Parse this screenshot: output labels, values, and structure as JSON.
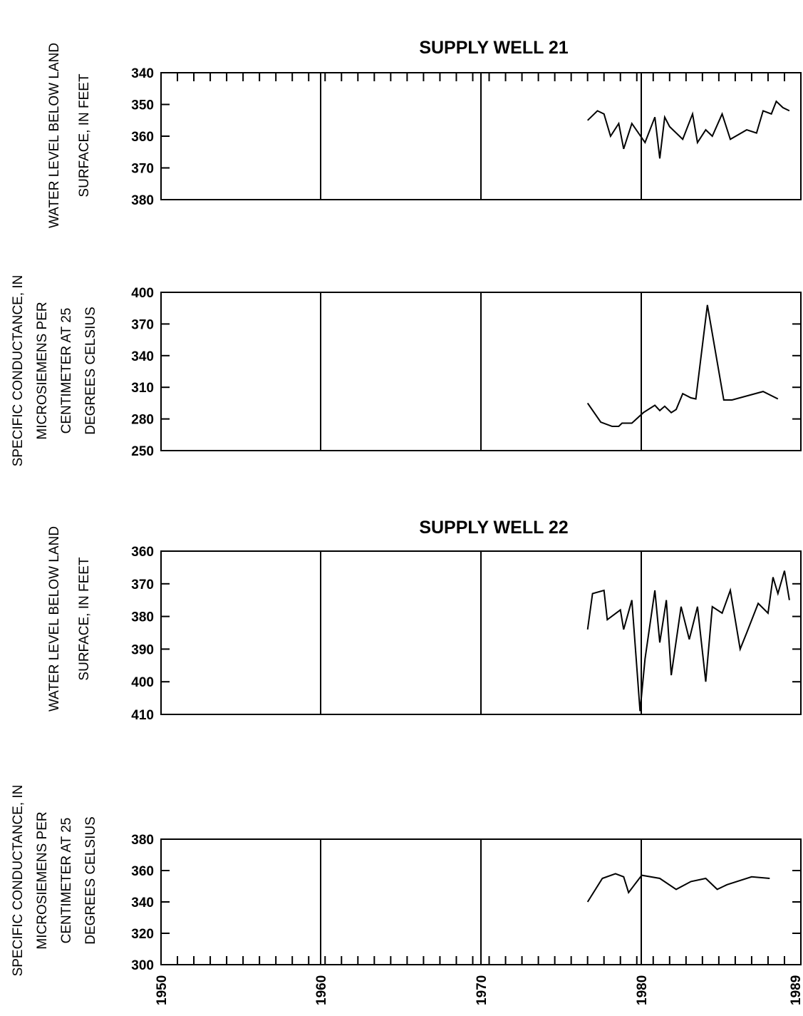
{
  "chart_data": [
    {
      "type": "line",
      "title": "SUPPLY WELL 21",
      "ylabel_lines": [
        "WATER LEVEL BELOW LAND",
        "SURFACE, IN FEET"
      ],
      "ylim": [
        340,
        380
      ],
      "yticks": [
        "340",
        "350",
        "360",
        "370",
        "380"
      ],
      "y_inverted": true,
      "xlim": [
        1950,
        1989
      ],
      "series": [
        {
          "x": [
            1976.0,
            1976.6,
            1977.0,
            1977.4,
            1977.9,
            1978.2,
            1978.7,
            1979.5,
            1980.1,
            1980.4,
            1980.7,
            1981.0,
            1981.8,
            1982.4,
            1982.7,
            1983.2,
            1983.6,
            1984.2,
            1984.7,
            1985.7,
            1986.3,
            1986.7,
            1987.2,
            1987.5,
            1987.9,
            1988.3
          ],
          "y": [
            355,
            352,
            353,
            360,
            356,
            364,
            356,
            362,
            354,
            367,
            354,
            357,
            361,
            353,
            362,
            358,
            360,
            353,
            361,
            358,
            359,
            352,
            353,
            349,
            351,
            352
          ]
        }
      ]
    },
    {
      "type": "line",
      "title": "",
      "ylabel_lines": [
        "SPECIFIC CONDUCTANCE, IN",
        "MICROSIEMENS PER",
        "CENTIMETER AT 25",
        "DEGREES CELSIUS"
      ],
      "ylim": [
        250,
        400
      ],
      "yticks": [
        "250",
        "280",
        "310",
        "340",
        "370",
        "400"
      ],
      "xlim": [
        1950,
        1989
      ],
      "series": [
        {
          "x": [
            1976.0,
            1976.8,
            1977.5,
            1977.9,
            1978.1,
            1978.7,
            1979.4,
            1980.1,
            1980.4,
            1980.7,
            1981.1,
            1981.4,
            1981.8,
            1982.3,
            1982.6,
            1983.3,
            1984.3,
            1984.8,
            1986.7,
            1987.6
          ],
          "y": [
            295,
            277,
            273,
            273,
            276,
            276,
            286,
            293,
            288,
            292,
            286,
            289,
            304,
            300,
            299,
            388,
            298,
            298,
            306,
            299
          ]
        }
      ]
    },
    {
      "type": "line",
      "title": "SUPPLY WELL 22",
      "ylabel_lines": [
        "WATER LEVEL BELOW LAND",
        "SURFACE, IN FEET"
      ],
      "ylim": [
        360,
        410
      ],
      "yticks": [
        "360",
        "370",
        "380",
        "390",
        "400",
        "410"
      ],
      "y_inverted": true,
      "xlim": [
        1950,
        1989
      ],
      "series": [
        {
          "x": [
            1976.0,
            1976.3,
            1977.0,
            1977.2,
            1978.0,
            1978.2,
            1978.7,
            1979.2,
            1979.5,
            1980.1,
            1980.4,
            1980.8,
            1981.1,
            1981.7,
            1982.2,
            1982.7,
            1983.2,
            1983.6,
            1984.2,
            1984.7,
            1985.3,
            1985.7,
            1986.4,
            1987.0,
            1987.3,
            1987.6,
            1988.0,
            1988.3
          ],
          "y": [
            384,
            373,
            372,
            381,
            378,
            384,
            375,
            409,
            393,
            372,
            388,
            375,
            398,
            377,
            387,
            377,
            400,
            377,
            379,
            372,
            390,
            385,
            376,
            379,
            368,
            373,
            366,
            375
          ]
        }
      ]
    },
    {
      "type": "line",
      "title": "",
      "ylabel_lines": [
        "SPECIFIC CONDUCTANCE, IN",
        "MICROSIEMENS PER",
        "CENTIMETER AT 25",
        "DEGREES CELSIUS"
      ],
      "ylim": [
        300,
        380
      ],
      "yticks": [
        "300",
        "320",
        "340",
        "360",
        "380"
      ],
      "xlim": [
        1950,
        1989
      ],
      "xticks": [
        "1950",
        "1960",
        "1970",
        "1980",
        "1989"
      ],
      "series": [
        {
          "x": [
            1976.0,
            1976.9,
            1977.7,
            1978.2,
            1978.5,
            1979.3,
            1980.4,
            1981.4,
            1982.3,
            1983.2,
            1983.9,
            1984.5,
            1986.0,
            1987.1
          ],
          "y": [
            340,
            355,
            358,
            356,
            346,
            357,
            355,
            348,
            353,
            355,
            348,
            351,
            356,
            355
          ]
        }
      ]
    }
  ]
}
